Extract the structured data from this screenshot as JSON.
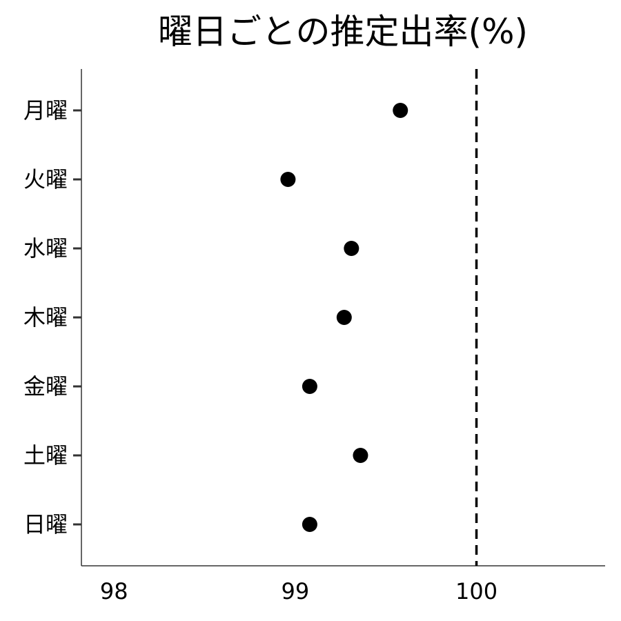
{
  "chart_data": {
    "type": "scatter",
    "title": "曜日ごとの推定出率(%)",
    "xlabel": "",
    "ylabel": "",
    "categories": [
      "月曜",
      "火曜",
      "水曜",
      "木曜",
      "金曜",
      "土曜",
      "日曜"
    ],
    "values": [
      99.58,
      98.96,
      99.31,
      99.27,
      99.08,
      99.36,
      99.08
    ],
    "xlim": [
      97.82,
      100.71
    ],
    "x_ticks": [
      "98",
      "99",
      "100"
    ],
    "reference_line": {
      "x": 100,
      "style": "dashed"
    },
    "grid": false,
    "legend": "none",
    "colors": {
      "point": "#000000",
      "reference_line": "#000000",
      "axis": "#333333"
    }
  }
}
